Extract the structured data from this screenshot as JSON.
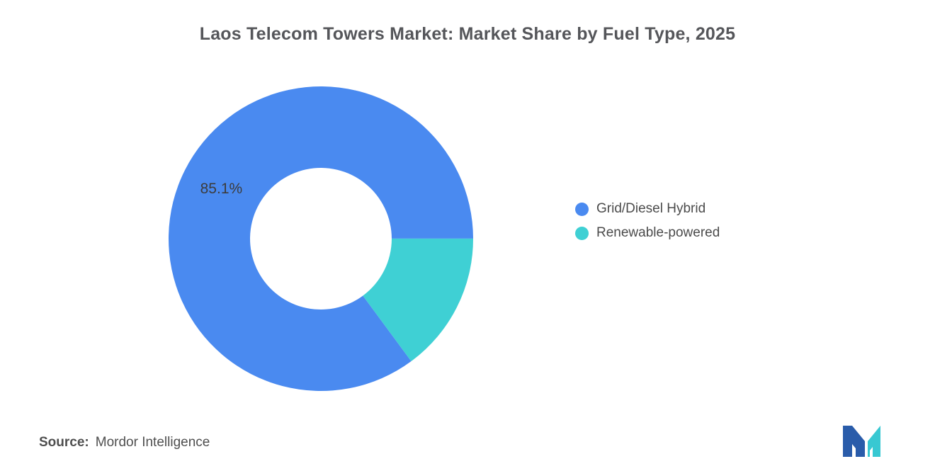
{
  "title": "Laos Telecom Towers Market: Market Share by Fuel Type, 2025",
  "chart_data": {
    "type": "pie",
    "subtype": "donut",
    "title": "Laos Telecom Towers Market: Market Share by Fuel Type, 2025",
    "unit": "%",
    "slices": [
      {
        "name": "Grid/Diesel Hybrid",
        "value": 85.1,
        "label": "85.1%",
        "color": "#4A8AF0"
      },
      {
        "name": "Renewable-powered",
        "value": 14.9,
        "label": "",
        "color": "#3FD0D4"
      }
    ],
    "start_angle_deg": 143.6,
    "inner_radius_ratio": 0.465,
    "legend_position": "right",
    "label_color": "#3c3c3c",
    "label_font_size": 21
  },
  "source": {
    "label": "Source:",
    "text": "Mordor Intelligence"
  },
  "logo": {
    "name": "Mordor Intelligence logo",
    "blue": "#2A5CAA",
    "teal": "#38C8D2"
  }
}
